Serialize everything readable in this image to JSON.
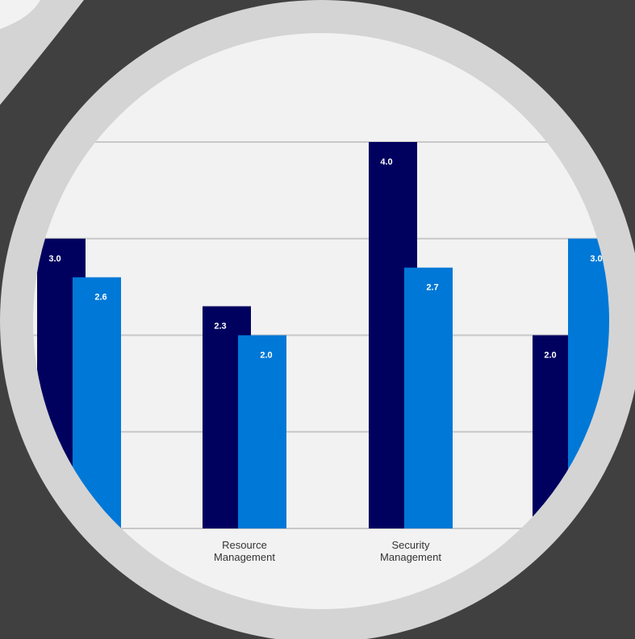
{
  "colors": {
    "background": "#404040",
    "ring": "#d4d4d4",
    "plot_bg": "#f2f2f2",
    "gridline": "#c8c8c8",
    "series_dark": "#00005f",
    "series_light": "#0078d7",
    "label_light": "#ffffff",
    "label_dark": "#333333"
  },
  "chart_data": {
    "type": "bar",
    "title": "",
    "xlabel": "",
    "ylabel": "",
    "ylim": [
      0,
      4
    ],
    "grid": true,
    "categories": [
      "",
      [
        "Resource",
        "Management"
      ],
      [
        "Security",
        "Management"
      ],
      ""
    ],
    "series": [
      {
        "values": [
          3.0,
          2.3,
          4.0,
          2.0
        ],
        "labels": [
          "3.0",
          "2.3",
          "4.0",
          "2.0"
        ]
      },
      {
        "values": [
          2.6,
          2.0,
          2.7,
          3.0
        ],
        "labels": [
          "2.6",
          "2.0",
          "2.7",
          "3.0"
        ]
      }
    ]
  }
}
